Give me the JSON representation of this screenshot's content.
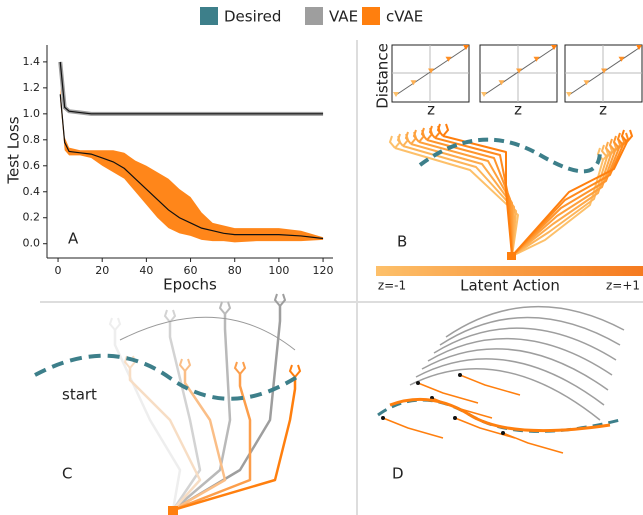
{
  "chart_data": {
    "type": "line",
    "panel": "A",
    "xlabel": "Epochs",
    "ylabel": "Test Loss",
    "x": [
      1,
      3,
      5,
      10,
      15,
      20,
      25,
      30,
      35,
      40,
      45,
      50,
      55,
      60,
      65,
      70,
      75,
      80,
      90,
      100,
      110,
      120
    ],
    "series": [
      {
        "name": "VAE",
        "color": "#9e9e9e",
        "values": [
          1.4,
          1.05,
          1.02,
          1.01,
          1.0,
          1.0,
          1.0,
          1.0,
          1.0,
          1.0,
          1.0,
          1.0,
          1.0,
          1.0,
          1.0,
          1.0,
          1.0,
          1.0,
          1.0,
          1.0,
          1.0,
          1.0
        ]
      },
      {
        "name": "cVAE",
        "color": "#ff7f0e",
        "values": [
          1.15,
          0.78,
          0.71,
          0.7,
          0.69,
          0.66,
          0.63,
          0.58,
          0.5,
          0.42,
          0.34,
          0.26,
          0.2,
          0.16,
          0.12,
          0.1,
          0.08,
          0.07,
          0.07,
          0.07,
          0.06,
          0.04
        ],
        "lower": [
          1.1,
          0.72,
          0.68,
          0.68,
          0.66,
          0.6,
          0.55,
          0.5,
          0.4,
          0.3,
          0.2,
          0.12,
          0.08,
          0.06,
          0.03,
          0.02,
          0.02,
          0.01,
          0.02,
          0.02,
          0.02,
          0.03
        ],
        "upper": [
          1.2,
          0.82,
          0.74,
          0.72,
          0.72,
          0.72,
          0.72,
          0.7,
          0.64,
          0.6,
          0.55,
          0.5,
          0.42,
          0.36,
          0.24,
          0.16,
          0.14,
          0.12,
          0.12,
          0.12,
          0.1,
          0.05
        ]
      }
    ],
    "xlim": [
      -5,
      124.5
    ],
    "xticks": [
      0,
      20,
      40,
      60,
      80,
      100,
      120
    ],
    "ylim": [
      -0.11,
      1.53
    ],
    "yticks": [
      {
        "value": 0,
        "label": "0.0"
      },
      0.2,
      0.4,
      0.6,
      0.8,
      {
        "value": 1,
        "label": "1.0"
      },
      1.2,
      1.4
    ]
  },
  "figure": {
    "desired": {
      "name": "Desired",
      "color": "#3d7f8a"
    },
    "panel_b": {
      "label": "B",
      "ylabel": "Distance",
      "xlabels": [
        "z",
        "z",
        "z"
      ],
      "bar_left": "z=-1",
      "bar_title": "Latent Action",
      "bar_right": "z=+1"
    },
    "panel_c": {
      "label": "C",
      "start": "start"
    },
    "panel_d": {
      "label": "D"
    }
  }
}
